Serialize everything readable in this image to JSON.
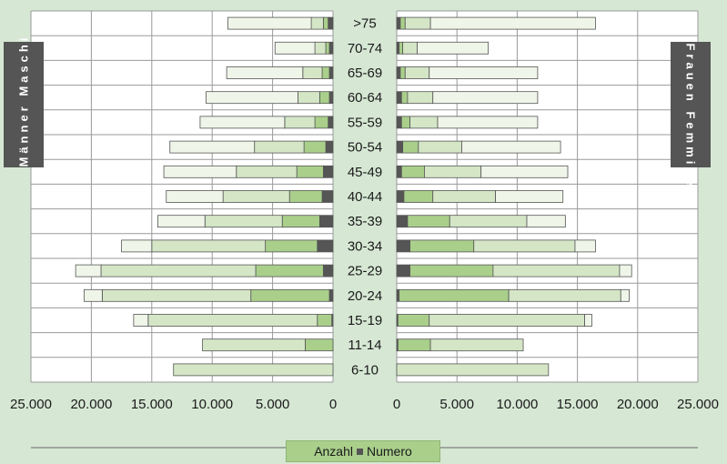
{
  "chart_data": {
    "type": "bar",
    "orientation": "horizontal-population-pyramid",
    "categories": [
      ">75",
      "70-74",
      "65-69",
      "60-64",
      "55-59",
      "50-54",
      "45-49",
      "40-44",
      "35-39",
      "30-34",
      "25-29",
      "20-24",
      "15-19",
      "11-14",
      "6-10"
    ],
    "x_ticks_left": [
      "25.000",
      "20.000",
      "15.000",
      "10.000",
      "5.000",
      "0"
    ],
    "x_ticks_right": [
      "0",
      "5.000",
      "10.000",
      "15.000",
      "20.000",
      "25.000"
    ],
    "xlim": [
      0,
      25000
    ],
    "grid": true,
    "left_label": "Männer Maschi",
    "right_label": "Frauen Femmine",
    "legend_text": "Anzahl",
    "legend_text2": "Numero",
    "segment_colors": [
      "#555555",
      "#a9cf8b",
      "#d4e6c6",
      "#eff6e9"
    ],
    "males_cumulative": [
      [
        400,
        800,
        1800,
        8700
      ],
      [
        300,
        600,
        1500,
        4800
      ],
      [
        300,
        900,
        2500,
        8800
      ],
      [
        300,
        1100,
        2900,
        10500
      ],
      [
        400,
        1500,
        4000,
        11000
      ],
      [
        600,
        2400,
        6500,
        13500
      ],
      [
        800,
        3000,
        8000,
        14000
      ],
      [
        900,
        3600,
        9100,
        13800
      ],
      [
        1100,
        4200,
        10600,
        14500
      ],
      [
        1300,
        5600,
        15000,
        17500
      ],
      [
        800,
        6400,
        19200,
        21300
      ],
      [
        300,
        6800,
        19100,
        20600
      ],
      [
        100,
        1300,
        15300,
        16500
      ],
      [
        0,
        2300,
        10800,
        10800
      ],
      [
        0,
        0,
        13200,
        13200
      ]
    ],
    "females_cumulative": [
      [
        300,
        700,
        2800,
        16500
      ],
      [
        200,
        500,
        1700,
        7600
      ],
      [
        300,
        700,
        2700,
        11700
      ],
      [
        400,
        900,
        3000,
        11700
      ],
      [
        400,
        1100,
        3400,
        11700
      ],
      [
        500,
        1800,
        5400,
        13600
      ],
      [
        400,
        2300,
        7000,
        14200
      ],
      [
        600,
        3000,
        8200,
        13800
      ],
      [
        900,
        4400,
        10800,
        14000
      ],
      [
        1100,
        6400,
        14800,
        16500
      ],
      [
        1100,
        8000,
        18500,
        19500
      ],
      [
        200,
        9300,
        18600,
        19300
      ],
      [
        100,
        2700,
        15600,
        16200
      ],
      [
        100,
        2800,
        10500,
        10500
      ],
      [
        0,
        0,
        12600,
        12600
      ]
    ]
  }
}
